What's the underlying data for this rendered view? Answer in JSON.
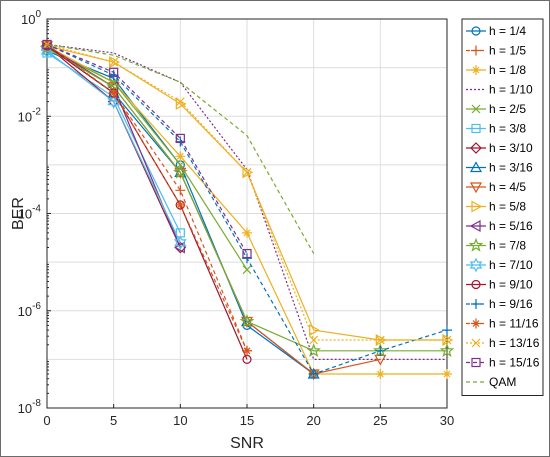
{
  "chart_data": {
    "type": "line",
    "xlabel": "SNR",
    "ylabel": "BER",
    "x": [
      0,
      5,
      10,
      15,
      20,
      25,
      30
    ],
    "xlim": [
      0,
      30
    ],
    "ylim": [
      1e-08,
      1
    ],
    "yscale": "log",
    "grid": true,
    "legend_position": "right",
    "x_ticks": [
      0,
      5,
      10,
      15,
      20,
      25,
      30
    ],
    "y_ticks": [
      {
        "base": "10",
        "exp": "0",
        "value": 1
      },
      {
        "base": "10",
        "exp": "-2",
        "value": 0.01
      },
      {
        "base": "10",
        "exp": "-4",
        "value": 0.0001
      },
      {
        "base": "10",
        "exp": "-6",
        "value": 1e-06
      },
      {
        "base": "10",
        "exp": "-8",
        "value": 1e-08
      }
    ],
    "series": [
      {
        "name": "h = 1/4",
        "color": "#0072bd",
        "dash": "solid",
        "marker": "circle",
        "points": [
          [
            0,
            0.22
          ],
          [
            5,
            0.06
          ],
          [
            10,
            0.001
          ],
          [
            15,
            5e-07
          ],
          [
            20,
            5e-08
          ]
        ]
      },
      {
        "name": "h = 1/5",
        "color": "#d95319",
        "dash": "dashed",
        "marker": "plus",
        "points": [
          [
            0,
            0.3
          ],
          [
            5,
            0.03
          ],
          [
            10,
            0.0003
          ],
          [
            15,
            1.5e-07
          ]
        ]
      },
      {
        "name": "h = 1/8",
        "color": "#edb120",
        "dash": "solid",
        "marker": "asterisk",
        "points": [
          [
            0,
            0.28
          ],
          [
            5,
            0.05
          ],
          [
            10,
            0.0015
          ],
          [
            15,
            4e-05
          ],
          [
            20,
            5e-08
          ],
          [
            25,
            5e-08
          ],
          [
            30,
            5e-08
          ]
        ]
      },
      {
        "name": "h = 1/10",
        "color": "#7e2f8e",
        "dash": "dotted",
        "marker": "none",
        "points": [
          [
            0,
            0.3
          ],
          [
            5,
            0.2
          ],
          [
            10,
            0.05
          ],
          [
            15,
            0.0008
          ],
          [
            20,
            1e-07
          ],
          [
            25,
            1e-07
          ],
          [
            30,
            1e-07
          ]
        ]
      },
      {
        "name": "h = 2/5",
        "color": "#77ac30",
        "dash": "solid",
        "marker": "x",
        "points": [
          [
            0,
            0.25
          ],
          [
            5,
            0.05
          ],
          [
            10,
            0.001
          ],
          [
            15,
            7e-06
          ]
        ]
      },
      {
        "name": "h = 3/8",
        "color": "#4dbeee",
        "dash": "solid",
        "marker": "square",
        "points": [
          [
            0,
            0.2
          ],
          [
            5,
            0.025
          ],
          [
            10,
            4e-05
          ]
        ]
      },
      {
        "name": "h = 3/10",
        "color": "#a2142f",
        "dash": "solid",
        "marker": "diamond",
        "points": [
          [
            0,
            0.28
          ],
          [
            5,
            0.02
          ],
          [
            10,
            2e-05
          ]
        ]
      },
      {
        "name": "h = 3/16",
        "color": "#0072bd",
        "dash": "solid",
        "marker": "triangle-up",
        "points": [
          [
            0,
            0.28
          ],
          [
            5,
            0.03
          ],
          [
            10,
            0.0007
          ],
          [
            15,
            6e-07
          ],
          [
            20,
            5e-08
          ]
        ]
      },
      {
        "name": "h = 4/5",
        "color": "#d95319",
        "dash": "solid",
        "marker": "triangle-down",
        "points": [
          [
            0,
            0.28
          ],
          [
            5,
            0.04
          ],
          [
            10,
            0.0007
          ],
          [
            15,
            6e-07
          ],
          [
            20,
            5e-08
          ],
          [
            25,
            1e-07
          ]
        ]
      },
      {
        "name": "h = 5/8",
        "color": "#edb120",
        "dash": "solid",
        "marker": "triangle-right",
        "points": [
          [
            0,
            0.28
          ],
          [
            5,
            0.13
          ],
          [
            10,
            0.018
          ],
          [
            15,
            0.0007
          ],
          [
            20,
            4e-07
          ],
          [
            25,
            2.5e-07
          ],
          [
            30,
            2.5e-07
          ]
        ]
      },
      {
        "name": "h = 5/16",
        "color": "#7e2f8e",
        "dash": "solid",
        "marker": "triangle-left",
        "points": [
          [
            0,
            0.28
          ],
          [
            5,
            0.04
          ],
          [
            10,
            2e-05
          ]
        ]
      },
      {
        "name": "h = 7/8",
        "color": "#77ac30",
        "dash": "solid",
        "marker": "pentagram",
        "points": [
          [
            0,
            0.25
          ],
          [
            5,
            0.04
          ],
          [
            10,
            0.0007
          ],
          [
            15,
            6e-07
          ],
          [
            20,
            1.5e-07
          ],
          [
            25,
            1.5e-07
          ],
          [
            30,
            1.5e-07
          ]
        ]
      },
      {
        "name": "h = 7/10",
        "color": "#4dbeee",
        "dash": "solid",
        "marker": "hexagram",
        "points": [
          [
            0,
            0.22
          ],
          [
            5,
            0.02
          ],
          [
            10,
            2.5e-05
          ]
        ]
      },
      {
        "name": "h = 9/10",
        "color": "#a2142f",
        "dash": "solid",
        "marker": "circle",
        "points": [
          [
            0,
            0.28
          ],
          [
            5,
            0.03
          ],
          [
            10,
            0.00015
          ],
          [
            15,
            1e-07
          ]
        ]
      },
      {
        "name": "h = 9/16",
        "color": "#0072bd",
        "dash": "dashed",
        "marker": "plus",
        "points": [
          [
            0,
            0.3
          ],
          [
            5,
            0.07
          ],
          [
            10,
            0.003
          ],
          [
            15,
            1.2e-05
          ],
          [
            20,
            5e-08
          ],
          [
            25,
            1.5e-07
          ],
          [
            30,
            4e-07
          ]
        ]
      },
      {
        "name": "h = 11/16",
        "color": "#d95319",
        "dash": "dashed",
        "marker": "asterisk",
        "points": [
          [
            0,
            0.3
          ],
          [
            5,
            0.03
          ],
          [
            10,
            0.00015
          ],
          [
            15,
            1.5e-07
          ]
        ]
      },
      {
        "name": "h = 13/16",
        "color": "#edb120",
        "dash": "dotted",
        "marker": "x",
        "points": [
          [
            0,
            0.3
          ],
          [
            5,
            0.13
          ],
          [
            10,
            0.02
          ],
          [
            15,
            0.0007
          ],
          [
            20,
            2.5e-07
          ],
          [
            25,
            2.5e-07
          ],
          [
            30,
            2.5e-07
          ]
        ]
      },
      {
        "name": "h = 15/16",
        "color": "#7e2f8e",
        "dash": "dashed",
        "marker": "square",
        "points": [
          [
            0,
            0.3
          ],
          [
            5,
            0.08
          ],
          [
            10,
            0.0035
          ],
          [
            15,
            1.5e-05
          ]
        ]
      },
      {
        "name": "QAM",
        "color": "#77ac30",
        "dash": "dashed",
        "marker": "none",
        "points": [
          [
            0,
            0.3
          ],
          [
            5,
            0.18
          ],
          [
            10,
            0.05
          ],
          [
            15,
            0.004
          ],
          [
            20,
            1.5e-05
          ]
        ]
      }
    ]
  }
}
